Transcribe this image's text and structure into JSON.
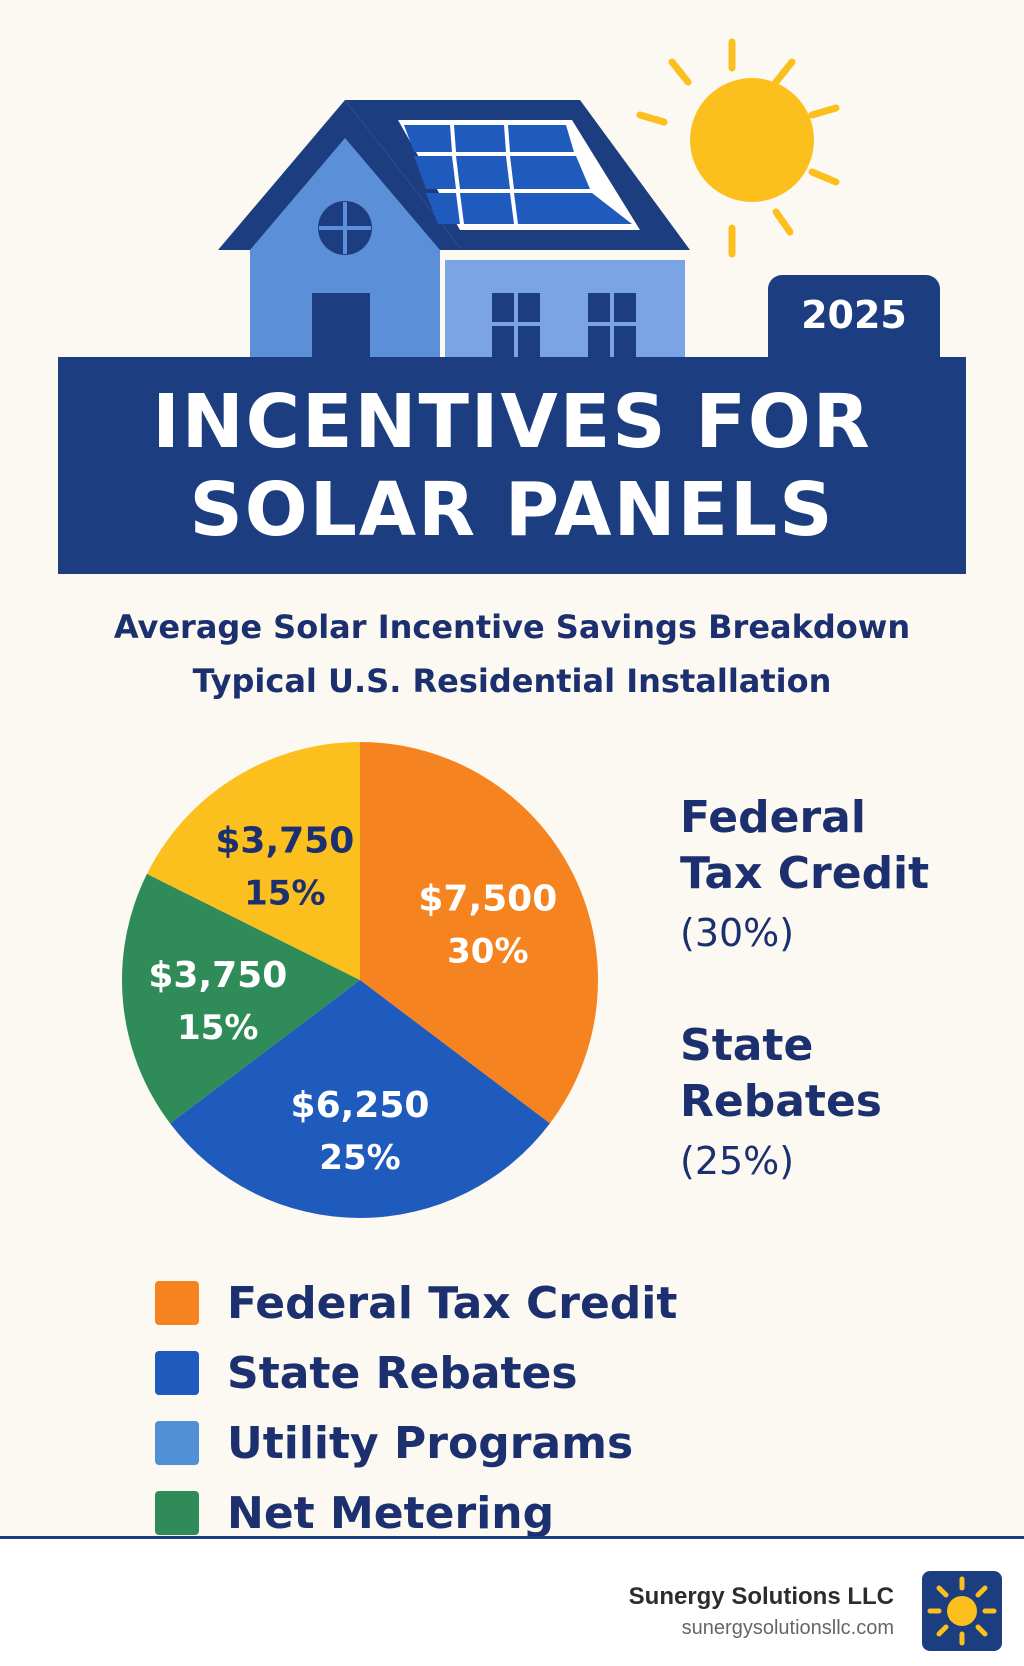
{
  "badge": {
    "year": "2025"
  },
  "title": {
    "line1": "INCENTIVES FOR",
    "line2": "SOLAR PANELS"
  },
  "subtitle": {
    "line1": "Average Solar Incentive Savings Breakdown",
    "line2": "Typical U.S. Residential Installation"
  },
  "colors": {
    "navy": "#1c3d80",
    "text": "#1c2f6e",
    "federal": "#f5831f",
    "state": "#1f5bbd",
    "utility": "#5190d4",
    "net_metering": "#2f8c58",
    "yellow_slice": "#fbbf1e",
    "sun": "#fbbf1e"
  },
  "chart_data": {
    "type": "pie",
    "slices": [
      {
        "amount": "$7,500",
        "percent_label": "30%",
        "percent": 30,
        "color": "#f5831f",
        "text_color": "#ffffff"
      },
      {
        "amount": "$6,250",
        "percent_label": "25%",
        "percent": 25,
        "color": "#1f5bbd",
        "text_color": "#ffffff"
      },
      {
        "amount": "$3,750",
        "percent_label": "15%",
        "percent": 15,
        "color": "#2f8c58",
        "text_color": "#ffffff"
      },
      {
        "amount": "$3,750",
        "percent_label": "15%",
        "percent": 15,
        "color": "#fbbf1e",
        "text_color": "#1c2f6e"
      }
    ],
    "annotations": [
      {
        "name_line1": "Federal",
        "name_line2": "Tax Credit",
        "percent": "(30%)"
      },
      {
        "name_line1": "State",
        "name_line2": "Rebates",
        "percent": "(25%)"
      }
    ],
    "legend": [
      {
        "label": "Federal Tax Credit",
        "color": "#f5831f"
      },
      {
        "label": "State Rebates",
        "color": "#1f5bbd"
      },
      {
        "label": "Utility Programs",
        "color": "#5190d4"
      },
      {
        "label": "Net Metering",
        "color": "#2f8c58"
      }
    ]
  },
  "footer": {
    "company": "Sunergy Solutions LLC",
    "url": "sunergysolutionsllc.com",
    "logo_icon": "sun-icon"
  }
}
